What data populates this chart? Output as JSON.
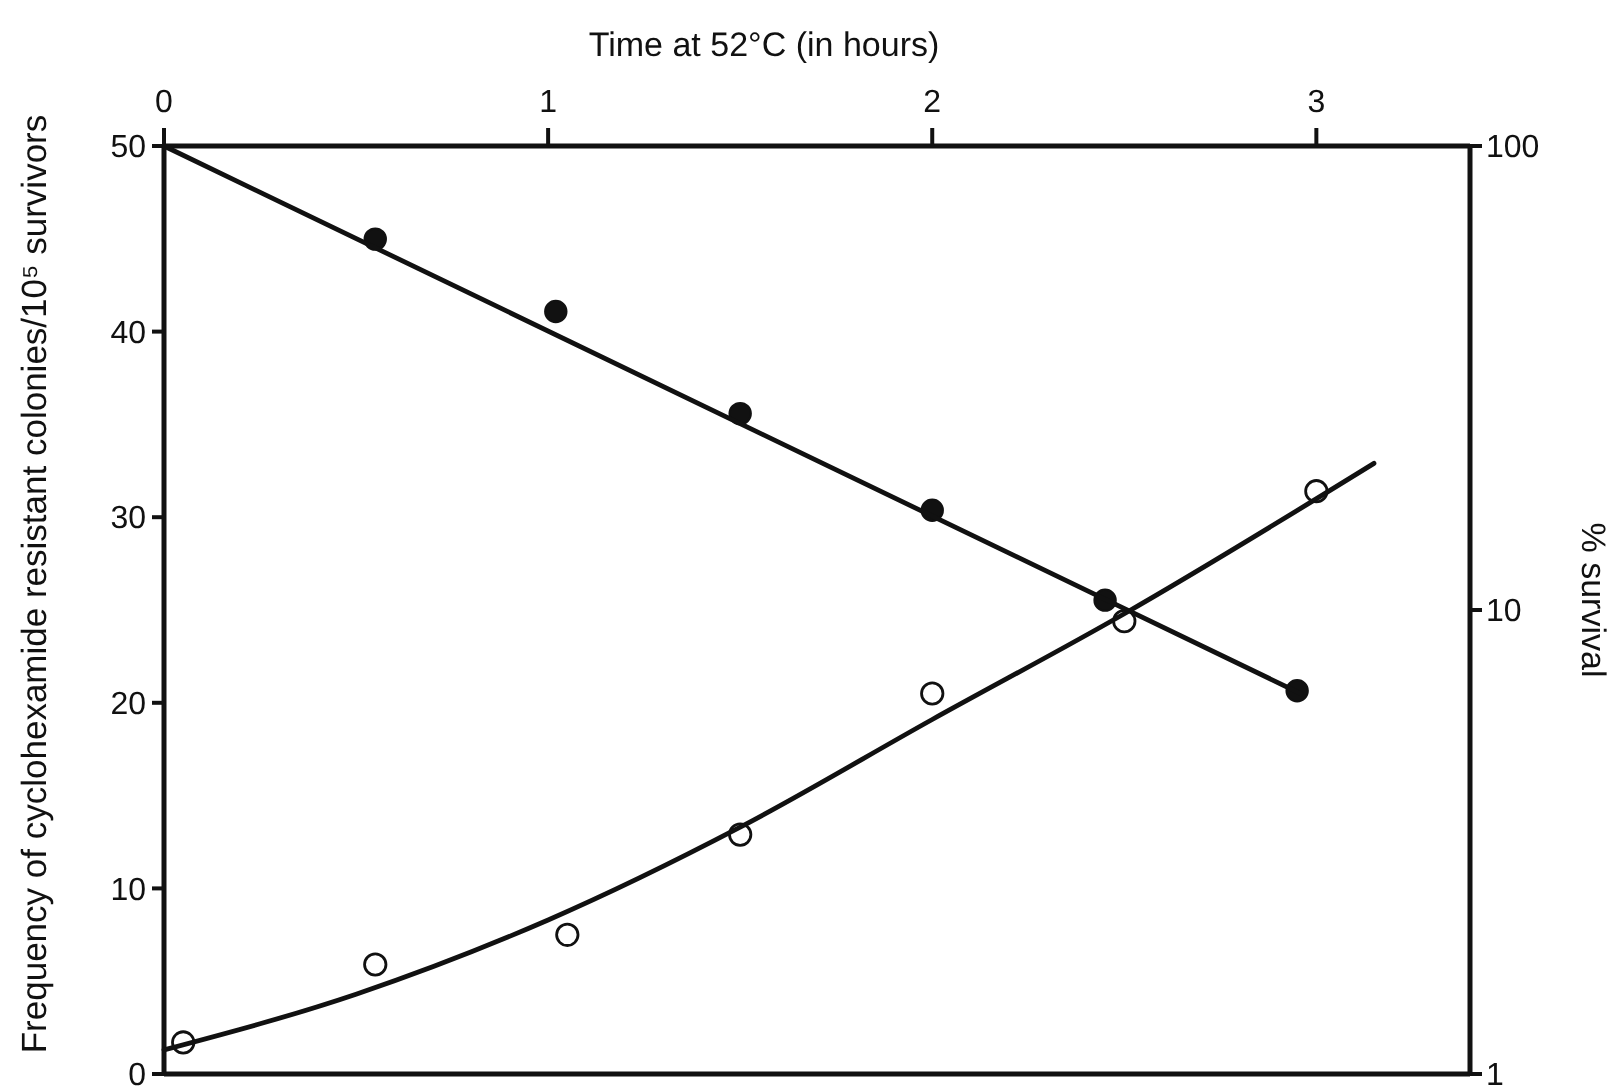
{
  "chart_data": {
    "type": "scatter",
    "xlabel": "Time at 52°C (in hours)",
    "ylabel": "Frequency of cyclohexamide resistant colonies/10⁵ survivors",
    "y2label": "% survival",
    "xlim": [
      0,
      3.4
    ],
    "xticks": [
      0,
      1,
      2,
      3
    ],
    "ylim": [
      0,
      50
    ],
    "yticks": [
      0,
      10,
      20,
      30,
      40,
      50
    ],
    "y2lim": [
      1,
      100
    ],
    "y2ticks": [
      1,
      10,
      100
    ],
    "log": "y2",
    "marker": "circle",
    "line_style": "solid",
    "series": [
      {
        "axis": "y2",
        "color": "#111111",
        "x": [
          0.55,
          1.02,
          1.5,
          2.0,
          2.45,
          2.95
        ],
        "values": [
          63,
          44,
          26.5,
          16.4,
          10.5,
          6.7
        ]
      },
      {
        "type": "line",
        "marker": "none",
        "axis": "y2",
        "color": "#111111",
        "x": [
          0,
          2.96
        ],
        "values": [
          100,
          6.6
        ]
      },
      {
        "color": "#111111",
        "x": [
          0.05,
          0.55,
          1.05,
          1.5,
          2.0,
          2.5,
          3.0
        ],
        "values": [
          1.7,
          5.9,
          7.5,
          12.9,
          20.5,
          24.4,
          31.4
        ]
      },
      {
        "type": "line",
        "marker": "none",
        "color": "#111111",
        "x": [
          0,
          0.5,
          1,
          1.5,
          2,
          2.5,
          3.15
        ],
        "values": [
          1.3,
          4.3,
          8.3,
          13.3,
          19.1,
          24.8,
          32.9
        ]
      }
    ]
  }
}
